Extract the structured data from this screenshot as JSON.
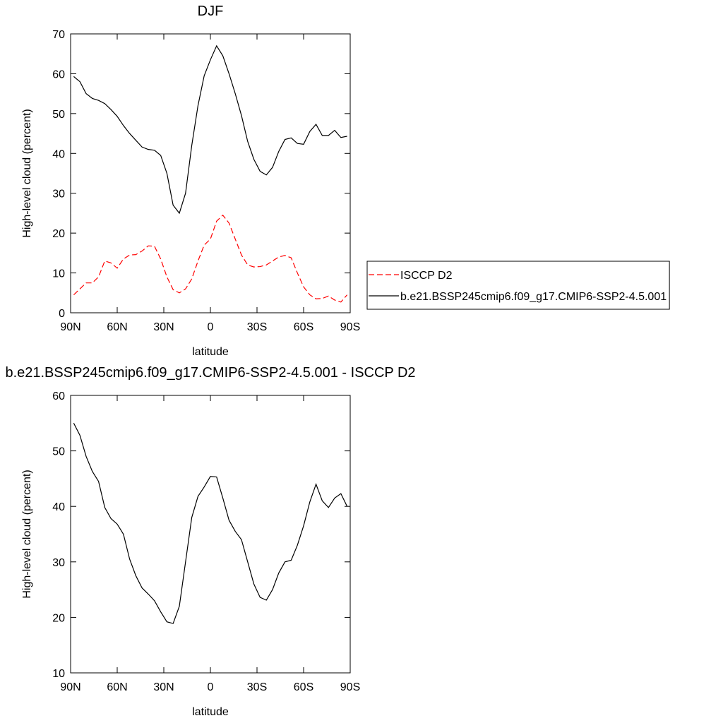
{
  "chart_data": [
    {
      "type": "line",
      "title": "DJF",
      "x_label": "latitude",
      "y_label": "High-level cloud (percent)",
      "x": [
        88,
        84,
        80,
        76,
        72,
        68,
        64,
        60,
        56,
        52,
        48,
        44,
        40,
        36,
        32,
        28,
        24,
        20,
        16,
        12,
        8,
        4,
        0,
        -4,
        -8,
        -12,
        -16,
        -20,
        -24,
        -28,
        -32,
        -36,
        -40,
        -44,
        -48,
        -52,
        -56,
        -60,
        -64,
        -68,
        -72,
        -76,
        -80,
        -84,
        -88
      ],
      "xlim": [
        90,
        -90
      ],
      "xticks": [
        {
          "value": 90,
          "label": "90N"
        },
        {
          "value": 60,
          "label": "60N"
        },
        {
          "value": 30,
          "label": "30N"
        },
        0,
        {
          "value": -30,
          "label": "30S"
        },
        {
          "value": -60,
          "label": "60S"
        },
        {
          "value": -90,
          "label": "90S"
        }
      ],
      "ylim": [
        0,
        70
      ],
      "yticks": [
        0,
        10,
        20,
        30,
        40,
        50,
        60,
        70
      ],
      "legend": "right",
      "series": [
        {
          "name": "ISCCP D2",
          "color": "#ff0000",
          "style": "dashed",
          "values": [
            4.5,
            6,
            7.5,
            7.5,
            9,
            13,
            12.5,
            11.2,
            13.5,
            14.5,
            14.6,
            15.5,
            16.8,
            16.7,
            13.5,
            9,
            5.8,
            5,
            6,
            8.5,
            13,
            17,
            18.5,
            23,
            24.5,
            22.5,
            18.5,
            14.5,
            12,
            11.5,
            11.6,
            12,
            13,
            14,
            14.4,
            13.8,
            10,
            6.5,
            4.5,
            3.5,
            3.6,
            4.2,
            3.2,
            2.7,
            4.5
          ]
        },
        {
          "name": "b.e21.BSSP245cmip6.f09_g17.CMIP6-SSP2-4.5.001",
          "color": "#000000",
          "style": "solid",
          "values": [
            59.3,
            58,
            55,
            53.8,
            53.3,
            52.5,
            51,
            49.3,
            47,
            45,
            43.3,
            41.6,
            41,
            40.8,
            39.5,
            35,
            27,
            25,
            30,
            42,
            52,
            59.5,
            63.5,
            67,
            64.5,
            60,
            55,
            49.5,
            43,
            38.5,
            35.5,
            34.6,
            36.5,
            40.5,
            43.5,
            43.9,
            42.5,
            42.3,
            45.5,
            47.3,
            44.5,
            44.5,
            45.8,
            44,
            44.3
          ]
        }
      ]
    },
    {
      "type": "line",
      "title": "b.e21.BSSP245cmip6.f09_g17.CMIP6-SSP2-4.5.001 - ISCCP D2",
      "x_label": "latitude",
      "y_label": "High-level cloud (percent)",
      "x": [
        88,
        84,
        80,
        76,
        72,
        68,
        64,
        60,
        56,
        52,
        48,
        44,
        40,
        36,
        32,
        28,
        24,
        20,
        16,
        12,
        8,
        4,
        0,
        -4,
        -8,
        -12,
        -16,
        -20,
        -24,
        -28,
        -32,
        -36,
        -40,
        -44,
        -48,
        -52,
        -56,
        -60,
        -64,
        -68,
        -72,
        -76,
        -80,
        -84,
        -88
      ],
      "xlim": [
        90,
        -90
      ],
      "xticks": [
        {
          "value": 90,
          "label": "90N"
        },
        {
          "value": 60,
          "label": "60N"
        },
        {
          "value": 30,
          "label": "30N"
        },
        0,
        {
          "value": -30,
          "label": "30S"
        },
        {
          "value": -60,
          "label": "60S"
        },
        {
          "value": -90,
          "label": "90S"
        }
      ],
      "ylim": [
        10,
        60
      ],
      "yticks": [
        10,
        20,
        30,
        40,
        50,
        60
      ],
      "series": [
        {
          "color": "#000000",
          "style": "solid",
          "values": [
            55,
            52.8,
            49,
            46.3,
            44.5,
            39.8,
            37.8,
            36.8,
            35,
            30.5,
            27.5,
            25.3,
            24.2,
            23,
            21,
            19.2,
            18.9,
            22,
            30,
            38,
            41.8,
            43.5,
            45.4,
            45.3,
            41.5,
            37.5,
            35.5,
            34,
            30,
            26,
            23.6,
            23.1,
            25,
            28,
            30,
            30.3,
            33,
            36.5,
            40.8,
            44,
            41,
            39.8,
            41.5,
            42.3,
            40
          ]
        }
      ]
    }
  ]
}
